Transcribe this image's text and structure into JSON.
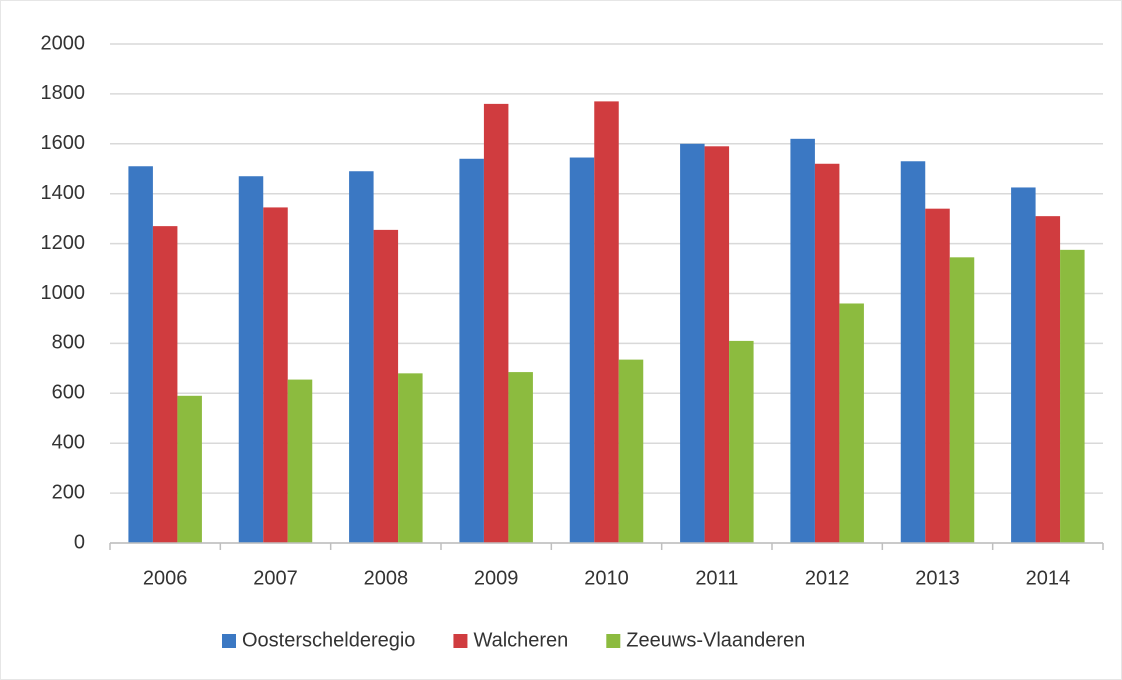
{
  "chart_data": {
    "type": "bar",
    "categories": [
      "2006",
      "2007",
      "2008",
      "2009",
      "2010",
      "2011",
      "2012",
      "2013",
      "2014"
    ],
    "series": [
      {
        "name": "Oosterschelderegio",
        "color": "#3b78c3",
        "values": [
          1510,
          1470,
          1490,
          1540,
          1545,
          1600,
          1620,
          1530,
          1425
        ]
      },
      {
        "name": "Walcheren",
        "color": "#d03c3f",
        "values": [
          1270,
          1345,
          1255,
          1760,
          1770,
          1590,
          1520,
          1340,
          1310
        ]
      },
      {
        "name": "Zeeuws-Vlaanderen",
        "color": "#8cbb3f",
        "values": [
          590,
          655,
          680,
          685,
          735,
          810,
          960,
          1145,
          1175
        ]
      }
    ],
    "ylim": [
      0,
      2000
    ],
    "yticks": [
      0,
      200,
      400,
      600,
      800,
      1000,
      1200,
      1400,
      1600,
      1800,
      2000
    ],
    "grid": true,
    "legend": "bottom"
  }
}
